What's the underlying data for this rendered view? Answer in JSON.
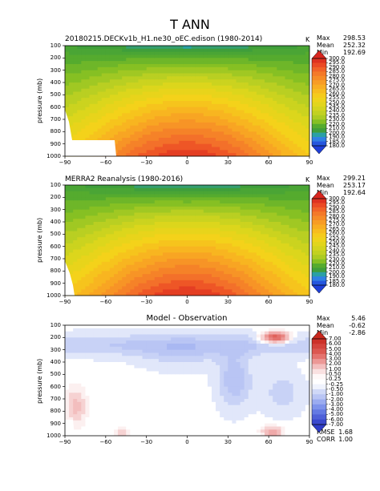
{
  "title": "T ANN",
  "chart_data": [
    {
      "type": "heatmap",
      "title": "20180215.DECKv1b_H1.ne30_oEC.edison (1980-2014)",
      "units": "K",
      "stats": {
        "labels": [
          "Max",
          "Mean",
          "Min"
        ],
        "values": [
          "298.53",
          "252.32",
          "192.69"
        ]
      },
      "ylabel": "pressure (mb)",
      "xticks": [
        "−90",
        "−60",
        "−30",
        "0",
        "30",
        "60",
        "90"
      ],
      "yticks": [
        "100",
        "200",
        "300",
        "400",
        "500",
        "600",
        "700",
        "800",
        "900",
        "1000"
      ],
      "xlim": [
        -90,
        90
      ],
      "ylim": [
        1000,
        100
      ],
      "colorbar": [
        "300.0",
        "295.0",
        "290.0",
        "285.0",
        "280.0",
        "275.0",
        "270.0",
        "265.0",
        "260.0",
        "255.0",
        "250.0",
        "245.0",
        "240.0",
        "235.0",
        "230.0",
        "220.0",
        "210.0",
        "200.0",
        "190.0",
        "185.0",
        "180.0"
      ],
      "range": [
        180,
        300
      ]
    },
    {
      "type": "heatmap",
      "title": "MERRA2 Reanalysis (1980-2016)",
      "units": "K",
      "stats": {
        "labels": [
          "Max",
          "Mean",
          "Min"
        ],
        "values": [
          "299.21",
          "253.17",
          "192.64"
        ]
      },
      "ylabel": "pressure (mb)",
      "xticks": [
        "−90",
        "−60",
        "−30",
        "0",
        "30",
        "60",
        "90"
      ],
      "yticks": [
        "100",
        "200",
        "300",
        "400",
        "500",
        "600",
        "700",
        "800",
        "900",
        "1000"
      ],
      "xlim": [
        -90,
        90
      ],
      "ylim": [
        1000,
        100
      ],
      "colorbar": [
        "300.0",
        "295.0",
        "290.0",
        "285.0",
        "280.0",
        "275.0",
        "270.0",
        "265.0",
        "260.0",
        "255.0",
        "250.0",
        "245.0",
        "240.0",
        "235.0",
        "230.0",
        "220.0",
        "210.0",
        "200.0",
        "190.0",
        "185.0",
        "180.0"
      ],
      "range": [
        180,
        300
      ]
    },
    {
      "type": "heatmap",
      "title": "Model - Observation",
      "units": "",
      "stats": {
        "labels": [
          "Max",
          "Mean",
          "Min"
        ],
        "values": [
          "5.46",
          "-0.62",
          "-2.86"
        ]
      },
      "stats2": {
        "labels": [
          "RMSE",
          "CORR"
        ],
        "values": [
          "1.68",
          "1.00"
        ]
      },
      "ylabel": "pressure (mb)",
      "xticks": [
        "−90",
        "−60",
        "−30",
        "0",
        "30",
        "60",
        "90"
      ],
      "yticks": [
        "100",
        "200",
        "300",
        "400",
        "500",
        "600",
        "700",
        "800",
        "900",
        "1000"
      ],
      "xlim": [
        -90,
        90
      ],
      "ylim": [
        1000,
        100
      ],
      "colorbar": [
        "7.00",
        "6.00",
        "5.00",
        "4.00",
        "3.00",
        "2.00",
        "1.00",
        "0.50",
        "0.25",
        "-0.25",
        "-0.50",
        "-1.00",
        "-2.00",
        "-3.00",
        "-4.00",
        "-5.00",
        "-6.00",
        "-7.00"
      ],
      "range": [
        -7,
        7
      ]
    }
  ]
}
